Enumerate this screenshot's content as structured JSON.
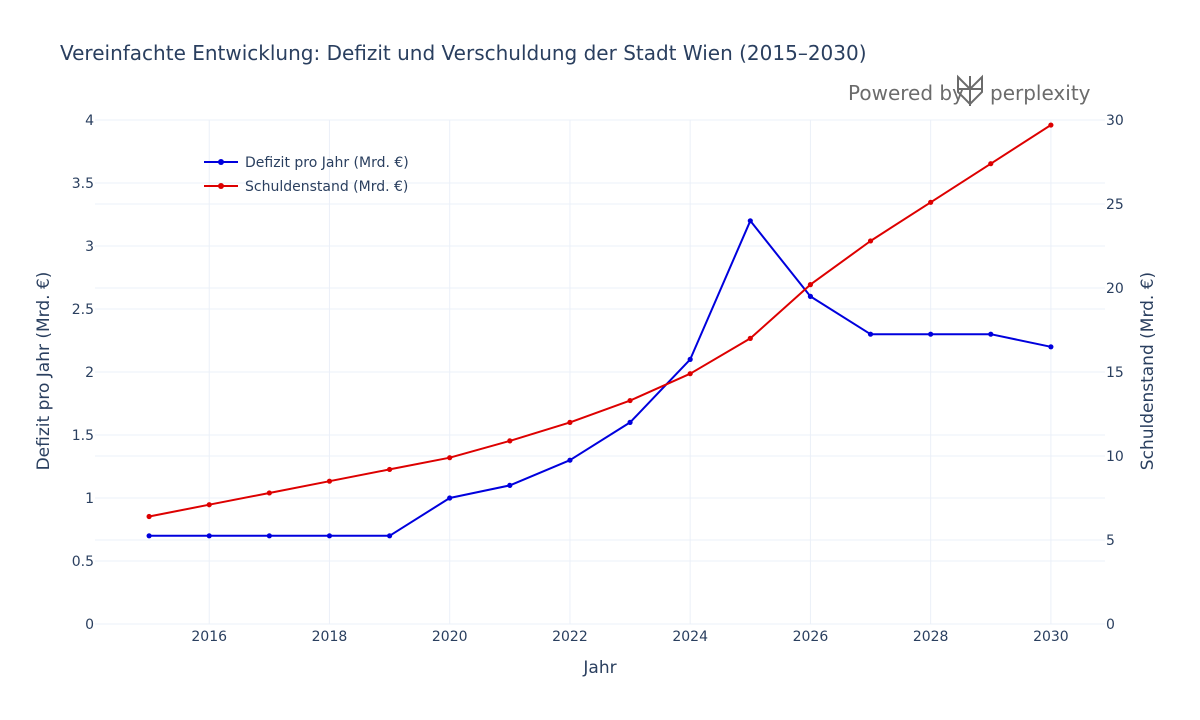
{
  "brand": {
    "powered_by": "Powered by",
    "name": "perplexity"
  },
  "chart_data": {
    "type": "line",
    "title": "Vereinfachte Entwicklung: Defizit und Verschuldung der Stadt Wien (2015–2030)",
    "xlabel": "Jahr",
    "ylabel": "Defizit pro Jahr (Mrd. €)",
    "y2label": "Schuldenstand (Mrd. €)",
    "x": [
      2015,
      2016,
      2017,
      2018,
      2019,
      2020,
      2021,
      2022,
      2023,
      2024,
      2025,
      2026,
      2027,
      2028,
      2029,
      2030
    ],
    "xlim": [
      2014.1,
      2030.9
    ],
    "ylim": [
      0,
      4
    ],
    "y2lim": [
      0,
      30
    ],
    "xticks": [
      "2016",
      "2018",
      "2020",
      "2022",
      "2024",
      "2026",
      "2028",
      "2030"
    ],
    "yticks": [
      "0",
      "0.5",
      "1",
      "1.5",
      "2",
      "2.5",
      "3",
      "3.5",
      "4"
    ],
    "y2ticks": [
      "0",
      "5",
      "10",
      "15",
      "20",
      "25",
      "30"
    ],
    "series": [
      {
        "name": "Defizit pro Jahr (Mrd. €)",
        "axis": "y",
        "color": "#0000dd",
        "values": [
          0.7,
          0.7,
          0.7,
          0.7,
          0.7,
          1.0,
          1.1,
          1.3,
          1.6,
          2.1,
          3.2,
          2.6,
          2.3,
          2.3,
          2.3,
          2.2
        ]
      },
      {
        "name": "Schuldenstand (Mrd. €)",
        "axis": "y2",
        "color": "#dd0000",
        "values": [
          6.4,
          7.1,
          7.8,
          8.5,
          9.2,
          9.9,
          10.9,
          12.0,
          13.3,
          14.9,
          17.0,
          20.2,
          22.8,
          25.1,
          27.4,
          29.7
        ]
      }
    ],
    "grid": true,
    "legend_position": "top-left"
  }
}
